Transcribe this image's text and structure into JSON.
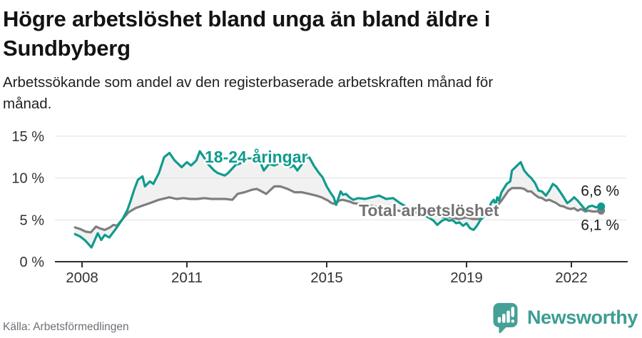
{
  "header": {
    "title_lines": [
      "Högre arbetslöshet bland unga än bland äldre i",
      "Sundbyberg"
    ],
    "subtitle_lines": [
      "Arbetssökande som andel av den registerbaserade arbetskraften månad för",
      "månad."
    ]
  },
  "footer": {
    "source": "Källa: Arbetsförmedlingen",
    "brand": "Newsworthy"
  },
  "chart_data": {
    "type": "line",
    "title": "Högre arbetslöshet bland unga än bland äldre i Sundbyberg",
    "subtitle": "Arbetssökande som andel av den registerbaserade arbetskraften månad för månad.",
    "grid": true,
    "legend_position": "inline-labels-on-lines",
    "x_axis": {
      "range": [
        2007.7,
        2023.2
      ],
      "ticks": [
        {
          "value": 2008,
          "label": "2008"
        },
        {
          "value": 2011,
          "label": "2011"
        },
        {
          "value": 2015,
          "label": "2015"
        },
        {
          "value": 2019,
          "label": "2019"
        },
        {
          "value": 2022,
          "label": "2022"
        }
      ]
    },
    "y_axis": {
      "range": [
        0,
        15.8
      ],
      "unit": "%",
      "ticks": [
        {
          "value": 0,
          "label": "0 %"
        },
        {
          "value": 5,
          "label": "5 %"
        },
        {
          "value": 10,
          "label": "10 %"
        },
        {
          "value": 15,
          "label": "15 %"
        }
      ]
    },
    "colors": {
      "accent_teal": "#0f9b8e",
      "line_gray": "#7e7e7e",
      "band_fill": "#f1f1f1",
      "grid": "#e1e1e1",
      "axis": "#2f2f2f",
      "axis_text": "#333333",
      "series_label_gray": "#737373",
      "end_label_text": "#1d1d1d"
    },
    "series": [
      {
        "name": "18-24-åringar",
        "color": "#0f9b8e",
        "end_label": "6,6 %",
        "points": [
          [
            2007.8,
            3.3
          ],
          [
            2007.95,
            3.0
          ],
          [
            2008.1,
            2.5
          ],
          [
            2008.27,
            1.7
          ],
          [
            2008.45,
            3.4
          ],
          [
            2008.55,
            2.6
          ],
          [
            2008.65,
            3.2
          ],
          [
            2008.78,
            2.9
          ],
          [
            2008.98,
            4.0
          ],
          [
            2009.16,
            5.1
          ],
          [
            2009.3,
            6.2
          ],
          [
            2009.4,
            7.4
          ],
          [
            2009.5,
            8.7
          ],
          [
            2009.6,
            9.8
          ],
          [
            2009.73,
            10.2
          ],
          [
            2009.8,
            9.0
          ],
          [
            2009.94,
            9.6
          ],
          [
            2010.04,
            9.3
          ],
          [
            2010.2,
            10.6
          ],
          [
            2010.35,
            12.5
          ],
          [
            2010.5,
            13.0
          ],
          [
            2010.65,
            12.1
          ],
          [
            2010.85,
            11.3
          ],
          [
            2011.0,
            11.9
          ],
          [
            2011.12,
            11.5
          ],
          [
            2011.27,
            12.1
          ],
          [
            2011.37,
            13.2
          ],
          [
            2011.5,
            12.4
          ],
          [
            2011.6,
            11.7
          ],
          [
            2011.78,
            10.9
          ],
          [
            2011.88,
            10.6
          ],
          [
            2012.08,
            10.3
          ],
          [
            2012.18,
            10.6
          ],
          [
            2012.4,
            11.6
          ],
          [
            2012.5,
            11.7
          ],
          [
            2012.6,
            11.9
          ],
          [
            2012.75,
            12.2
          ],
          [
            2012.9,
            12.1
          ],
          [
            2013.1,
            11.9
          ],
          [
            2013.2,
            10.9
          ],
          [
            2013.35,
            11.7
          ],
          [
            2013.5,
            11.5
          ],
          [
            2013.65,
            11.8
          ],
          [
            2013.88,
            11.9
          ],
          [
            2013.96,
            11.3
          ],
          [
            2014.06,
            11.5
          ],
          [
            2014.16,
            10.9
          ],
          [
            2014.3,
            11.7
          ],
          [
            2014.4,
            12.4
          ],
          [
            2014.5,
            12.5
          ],
          [
            2014.63,
            11.5
          ],
          [
            2014.78,
            10.6
          ],
          [
            2014.88,
            10.1
          ],
          [
            2015.0,
            9.0
          ],
          [
            2015.1,
            8.3
          ],
          [
            2015.2,
            7.7
          ],
          [
            2015.27,
            6.8
          ],
          [
            2015.4,
            8.4
          ],
          [
            2015.47,
            8.0
          ],
          [
            2015.55,
            8.1
          ],
          [
            2015.65,
            7.7
          ],
          [
            2015.76,
            7.4
          ],
          [
            2015.9,
            7.6
          ],
          [
            2016.1,
            7.5
          ],
          [
            2016.3,
            7.7
          ],
          [
            2016.5,
            7.9
          ],
          [
            2016.7,
            7.5
          ],
          [
            2016.9,
            7.6
          ],
          [
            2017.1,
            7.0
          ],
          [
            2017.35,
            6.4
          ],
          [
            2017.6,
            5.9
          ],
          [
            2017.8,
            5.5
          ],
          [
            2017.95,
            5.2
          ],
          [
            2018.06,
            4.9
          ],
          [
            2018.16,
            4.4
          ],
          [
            2018.3,
            4.9
          ],
          [
            2018.4,
            5.1
          ],
          [
            2018.5,
            4.9
          ],
          [
            2018.6,
            5.0
          ],
          [
            2018.7,
            4.6
          ],
          [
            2018.8,
            4.7
          ],
          [
            2018.9,
            4.3
          ],
          [
            2019.0,
            4.6
          ],
          [
            2019.1,
            4.0
          ],
          [
            2019.2,
            3.8
          ],
          [
            2019.3,
            4.3
          ],
          [
            2019.4,
            5.0
          ],
          [
            2019.55,
            5.6
          ],
          [
            2019.65,
            6.4
          ],
          [
            2019.7,
            7.0
          ],
          [
            2019.78,
            7.4
          ],
          [
            2019.83,
            6.8
          ],
          [
            2019.88,
            7.7
          ],
          [
            2019.93,
            7.3
          ],
          [
            2020.0,
            8.3
          ],
          [
            2020.15,
            9.3
          ],
          [
            2020.25,
            9.6
          ],
          [
            2020.3,
            10.9
          ],
          [
            2020.4,
            11.3
          ],
          [
            2020.55,
            11.9
          ],
          [
            2020.65,
            10.9
          ],
          [
            2020.75,
            10.4
          ],
          [
            2020.85,
            10.0
          ],
          [
            2020.96,
            9.4
          ],
          [
            2021.06,
            8.5
          ],
          [
            2021.16,
            8.4
          ],
          [
            2021.27,
            7.9
          ],
          [
            2021.37,
            8.5
          ],
          [
            2021.47,
            9.3
          ],
          [
            2021.57,
            9.0
          ],
          [
            2021.67,
            8.4
          ],
          [
            2021.78,
            7.7
          ],
          [
            2021.88,
            7.0
          ],
          [
            2021.98,
            7.3
          ],
          [
            2022.08,
            7.7
          ],
          [
            2022.18,
            7.3
          ],
          [
            2022.28,
            6.8
          ],
          [
            2022.4,
            6.2
          ],
          [
            2022.5,
            6.6
          ],
          [
            2022.6,
            6.7
          ],
          [
            2022.7,
            6.5
          ],
          [
            2022.85,
            6.6
          ]
        ]
      },
      {
        "name": "Total arbetslöshet",
        "color": "#7e7e7e",
        "end_label": "6,1 %",
        "points": [
          [
            2007.8,
            4.1
          ],
          [
            2007.95,
            3.9
          ],
          [
            2008.1,
            3.6
          ],
          [
            2008.25,
            3.5
          ],
          [
            2008.4,
            4.2
          ],
          [
            2008.5,
            4.0
          ],
          [
            2008.65,
            3.8
          ],
          [
            2008.8,
            4.1
          ],
          [
            2008.9,
            4.4
          ],
          [
            2009.0,
            4.3
          ],
          [
            2009.16,
            5.1
          ],
          [
            2009.33,
            5.9
          ],
          [
            2009.53,
            6.4
          ],
          [
            2009.73,
            6.7
          ],
          [
            2009.94,
            7.0
          ],
          [
            2010.2,
            7.4
          ],
          [
            2010.5,
            7.7
          ],
          [
            2010.7,
            7.5
          ],
          [
            2010.9,
            7.6
          ],
          [
            2011.1,
            7.5
          ],
          [
            2011.3,
            7.5
          ],
          [
            2011.5,
            7.6
          ],
          [
            2011.7,
            7.5
          ],
          [
            2011.9,
            7.5
          ],
          [
            2012.1,
            7.5
          ],
          [
            2012.3,
            7.4
          ],
          [
            2012.45,
            8.1
          ],
          [
            2012.65,
            8.3
          ],
          [
            2012.86,
            8.6
          ],
          [
            2013.0,
            8.7
          ],
          [
            2013.14,
            8.4
          ],
          [
            2013.27,
            8.1
          ],
          [
            2013.5,
            9.0
          ],
          [
            2013.67,
            9.0
          ],
          [
            2013.88,
            8.7
          ],
          [
            2014.08,
            8.3
          ],
          [
            2014.28,
            8.3
          ],
          [
            2014.5,
            8.1
          ],
          [
            2014.7,
            7.9
          ],
          [
            2014.85,
            7.7
          ],
          [
            2015.04,
            7.3
          ],
          [
            2015.14,
            7.0
          ],
          [
            2015.24,
            6.9
          ],
          [
            2015.35,
            7.3
          ],
          [
            2015.45,
            7.4
          ],
          [
            2015.55,
            7.3
          ],
          [
            2015.65,
            7.2
          ],
          [
            2015.76,
            7.0
          ],
          [
            2015.95,
            6.9
          ],
          [
            2016.15,
            6.8
          ],
          [
            2016.35,
            6.6
          ],
          [
            2016.55,
            6.5
          ],
          [
            2016.75,
            6.3
          ],
          [
            2016.95,
            6.2
          ],
          [
            2017.15,
            6.0
          ],
          [
            2017.4,
            5.9
          ],
          [
            2017.65,
            5.8
          ],
          [
            2017.94,
            5.7
          ],
          [
            2018.16,
            5.5
          ],
          [
            2018.37,
            5.3
          ],
          [
            2018.57,
            5.3
          ],
          [
            2018.78,
            5.1
          ],
          [
            2018.98,
            5.3
          ],
          [
            2019.18,
            5.1
          ],
          [
            2019.39,
            5.1
          ],
          [
            2019.59,
            5.9
          ],
          [
            2019.69,
            6.1
          ],
          [
            2019.78,
            6.5
          ],
          [
            2019.9,
            6.8
          ],
          [
            2020.0,
            7.3
          ],
          [
            2020.1,
            7.9
          ],
          [
            2020.2,
            8.5
          ],
          [
            2020.3,
            8.8
          ],
          [
            2020.45,
            8.8
          ],
          [
            2020.55,
            8.8
          ],
          [
            2020.65,
            8.7
          ],
          [
            2020.75,
            8.4
          ],
          [
            2020.85,
            8.4
          ],
          [
            2020.96,
            8.0
          ],
          [
            2021.06,
            7.7
          ],
          [
            2021.16,
            7.6
          ],
          [
            2021.27,
            7.3
          ],
          [
            2021.37,
            7.4
          ],
          [
            2021.47,
            7.2
          ],
          [
            2021.57,
            7.0
          ],
          [
            2021.67,
            6.7
          ],
          [
            2021.78,
            6.6
          ],
          [
            2021.88,
            6.4
          ],
          [
            2021.98,
            6.3
          ],
          [
            2022.08,
            6.4
          ],
          [
            2022.18,
            6.1
          ],
          [
            2022.28,
            6.3
          ],
          [
            2022.4,
            6.0
          ],
          [
            2022.5,
            6.1
          ],
          [
            2022.6,
            6.0
          ],
          [
            2022.7,
            6.0
          ],
          [
            2022.85,
            6.1
          ]
        ]
      }
    ]
  }
}
